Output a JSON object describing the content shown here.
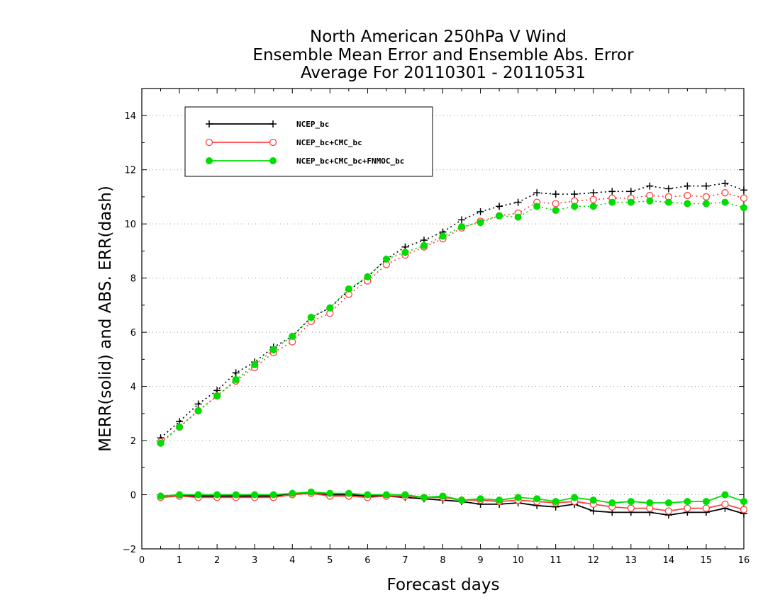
{
  "chart_data": {
    "type": "line",
    "title_lines": [
      "North American 250hPa V Wind",
      "Ensemble Mean Error and Ensemble Abs. Error",
      "Average For 20110301 - 20110531"
    ],
    "xlabel": "Forecast days",
    "ylabel": "MERR(solid) and ABS. ERR(dash)",
    "xlim": [
      0,
      16
    ],
    "ylim": [
      -2,
      15
    ],
    "xticks": [
      "0",
      "1",
      "2",
      "3",
      "4",
      "5",
      "6",
      "7",
      "8",
      "9",
      "10",
      "11",
      "12",
      "13",
      "14",
      "15",
      "16"
    ],
    "yticks": [
      "−2",
      "0",
      "2",
      "4",
      "6",
      "8",
      "10",
      "12",
      "14"
    ],
    "grid": "horizontal dotted",
    "legend_position": "top-left",
    "x": [
      0.5,
      1,
      1.5,
      2,
      2.5,
      3,
      3.5,
      4,
      4.5,
      5,
      5.5,
      6,
      6.5,
      7,
      7.5,
      8,
      8.5,
      9,
      9.5,
      10,
      10.5,
      11,
      11.5,
      12,
      12.5,
      13,
      13.5,
      14,
      14.5,
      15,
      15.5,
      16
    ],
    "series": [
      {
        "name": "NCEP_bc",
        "color": "#000000",
        "marker": "plus",
        "abs_err": [
          2.1,
          2.7,
          3.35,
          3.85,
          4.5,
          4.9,
          5.45,
          5.85,
          6.55,
          6.9,
          7.55,
          8.05,
          8.7,
          9.15,
          9.4,
          9.7,
          10.15,
          10.45,
          10.65,
          10.8,
          11.15,
          11.1,
          11.1,
          11.15,
          11.2,
          11.2,
          11.4,
          11.3,
          11.4,
          11.4,
          11.5,
          11.25
        ],
        "mean_err": [
          -0.05,
          -0.05,
          -0.05,
          -0.05,
          -0.05,
          -0.05,
          -0.05,
          0.05,
          0.05,
          0.0,
          0.0,
          -0.05,
          -0.05,
          -0.1,
          -0.15,
          -0.2,
          -0.25,
          -0.35,
          -0.35,
          -0.3,
          -0.4,
          -0.45,
          -0.35,
          -0.6,
          -0.65,
          -0.65,
          -0.65,
          -0.75,
          -0.65,
          -0.65,
          -0.5,
          -0.7
        ]
      },
      {
        "name": "NCEP_bc+CMC_bc",
        "color": "#ff4040",
        "marker": "open-circle",
        "abs_err": [
          1.95,
          2.5,
          3.1,
          3.65,
          4.2,
          4.7,
          5.25,
          5.65,
          6.4,
          6.7,
          7.4,
          7.9,
          8.5,
          8.85,
          9.15,
          9.45,
          9.85,
          10.1,
          10.3,
          10.4,
          10.8,
          10.75,
          10.85,
          10.9,
          10.95,
          10.95,
          11.05,
          11.0,
          11.05,
          11.0,
          11.15,
          10.95
        ],
        "mean_err": [
          -0.1,
          -0.05,
          -0.1,
          -0.1,
          -0.1,
          -0.1,
          -0.1,
          0.0,
          0.05,
          -0.05,
          -0.05,
          -0.1,
          -0.05,
          -0.05,
          -0.1,
          -0.1,
          -0.2,
          -0.2,
          -0.25,
          -0.2,
          -0.25,
          -0.3,
          -0.25,
          -0.35,
          -0.45,
          -0.5,
          -0.5,
          -0.6,
          -0.5,
          -0.5,
          -0.35,
          -0.55
        ]
      },
      {
        "name": "NCEP_bc+CMC_bc+FNMOC_bc",
        "color": "#00dd00",
        "marker": "filled-circle",
        "abs_err": [
          1.9,
          2.5,
          3.1,
          3.65,
          4.25,
          4.8,
          5.35,
          5.85,
          6.55,
          6.9,
          7.6,
          8.05,
          8.7,
          8.95,
          9.2,
          9.55,
          9.9,
          10.05,
          10.3,
          10.25,
          10.65,
          10.5,
          10.65,
          10.65,
          10.8,
          10.8,
          10.85,
          10.8,
          10.75,
          10.75,
          10.8,
          10.6
        ],
        "mean_err": [
          -0.05,
          0.0,
          0.0,
          0.0,
          0.0,
          0.0,
          0.0,
          0.05,
          0.1,
          0.05,
          0.05,
          0.0,
          0.0,
          0.0,
          -0.1,
          -0.05,
          -0.2,
          -0.15,
          -0.2,
          -0.1,
          -0.15,
          -0.25,
          -0.1,
          -0.2,
          -0.3,
          -0.25,
          -0.3,
          -0.3,
          -0.25,
          -0.25,
          0.0,
          -0.25
        ]
      }
    ]
  }
}
